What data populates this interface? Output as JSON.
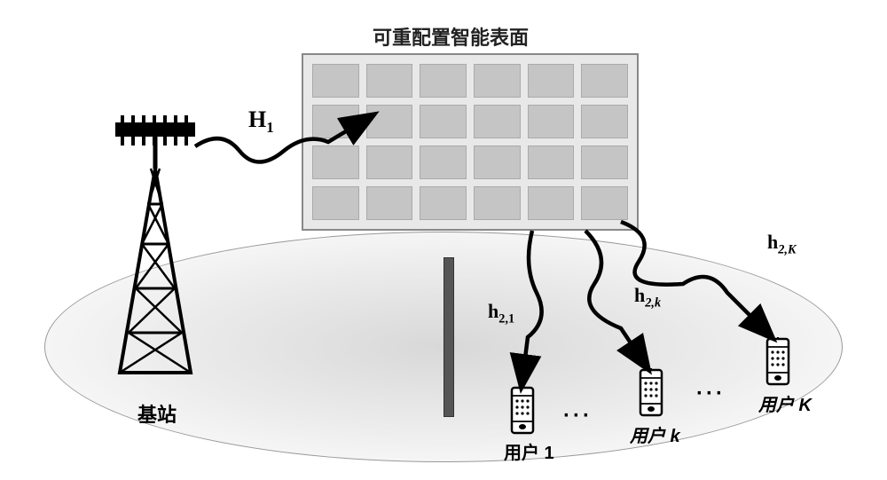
{
  "title": "可重配置智能表面",
  "labels": {
    "h1": "H",
    "h1_sub": "1",
    "h21": "h",
    "h21_sub": "2,1",
    "h2k": "h",
    "h2k_sub": "2,k",
    "h2K": "h",
    "h2K_sub": "2,K",
    "base_station": "基站",
    "user1": "用户 1",
    "userk": "用户 k",
    "userK": "用户 K"
  },
  "colors": {
    "background": "#ffffff",
    "panel_bg": "#e8e8e8",
    "panel_cell": "#c5c5c5",
    "ground_inner": "#d8d8d8",
    "ground_outer": "#f5f5f5",
    "wall": "#555555",
    "stroke": "#000000"
  },
  "ris": {
    "rows": 4,
    "cols": 6
  },
  "dots": "···"
}
